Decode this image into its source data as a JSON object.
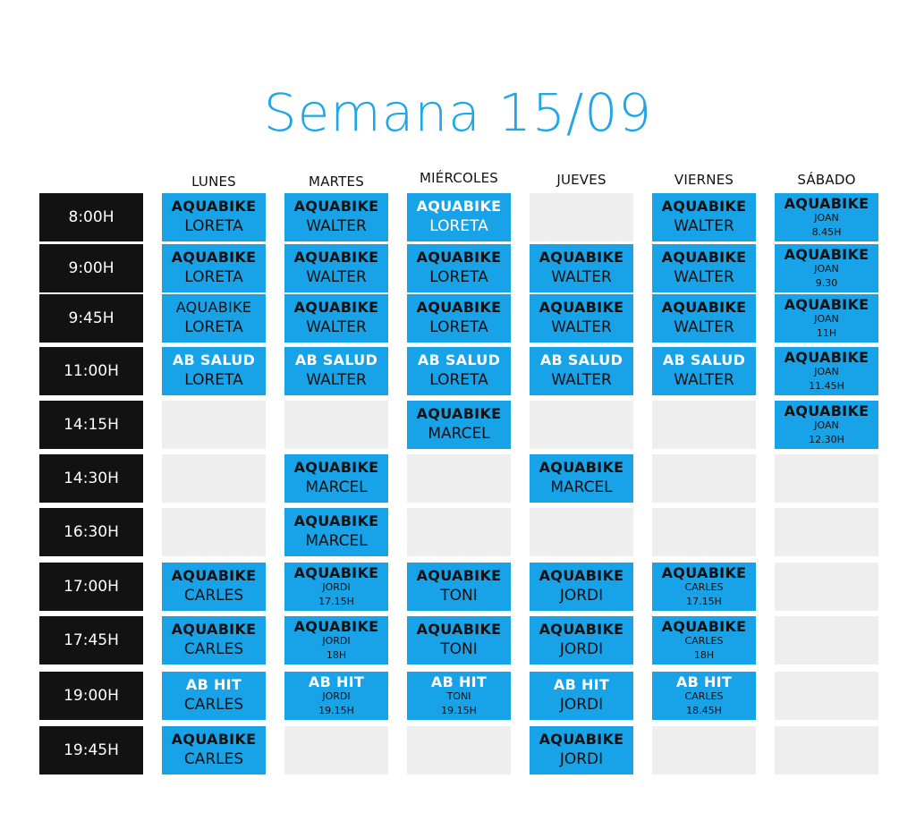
{
  "title": "Semana 15/09",
  "days": [
    "LUNES",
    "MARTES",
    "MIÉRCOLES",
    "JUEVES",
    "VIERNES",
    "SÁBADO"
  ],
  "times": [
    "8:00H",
    "9:00H",
    "9:45H",
    "11:00H",
    "14:15H",
    "14:30H",
    "16:30H",
    "17:00H",
    "17:45H",
    "19:00H",
    "19:45H"
  ],
  "grid": [
    [
      {
        "cls": "AQUABIKE",
        "inst": "LORETA"
      },
      {
        "cls": "AQUABIKE",
        "inst": "WALTER"
      },
      {
        "cls": "AQUABIKE",
        "inst": "LORETA",
        "white": true
      },
      null,
      {
        "cls": "AQUABIKE",
        "inst": "WALTER"
      },
      {
        "cls": "AQUABIKE",
        "sub": "JOAN",
        "time": "8.45H"
      }
    ],
    [
      {
        "cls": "AQUABIKE",
        "inst": "LORETA"
      },
      {
        "cls": "AQUABIKE",
        "inst": "WALTER"
      },
      {
        "cls": "AQUABIKE",
        "inst": "LORETA"
      },
      {
        "cls": "AQUABIKE",
        "inst": "WALTER"
      },
      {
        "cls": "AQUABIKE",
        "inst": "WALTER"
      },
      {
        "cls": "AQUABIKE",
        "sub": "JOAN",
        "time": "9.30"
      }
    ],
    [
      {
        "cls": "AQUABIKE",
        "inst": "LORETA",
        "light": true
      },
      {
        "cls": "AQUABIKE",
        "inst": "WALTER"
      },
      {
        "cls": "AQUABIKE",
        "inst": "LORETA"
      },
      {
        "cls": "AQUABIKE",
        "inst": "WALTER"
      },
      {
        "cls": "AQUABIKE",
        "inst": "WALTER"
      },
      {
        "cls": "AQUABIKE",
        "sub": "JOAN",
        "time": "11H"
      }
    ],
    [
      {
        "cls": "AB SALUD",
        "inst": "LORETA",
        "white": true
      },
      {
        "cls": "AB SALUD",
        "inst": "WALTER",
        "white": true
      },
      {
        "cls": "AB SALUD",
        "inst": "LORETA",
        "white": true
      },
      {
        "cls": "AB SALUD",
        "inst": "WALTER",
        "white": true
      },
      {
        "cls": "AB SALUD",
        "inst": "WALTER",
        "white": true
      },
      {
        "cls": "AQUABIKE",
        "sub": "JOAN",
        "time": "11.45H"
      }
    ],
    [
      null,
      null,
      {
        "cls": "AQUABIKE",
        "inst": "MARCEL"
      },
      null,
      null,
      {
        "cls": "AQUABIKE",
        "sub": "JOAN",
        "time": "12.30H"
      }
    ],
    [
      null,
      {
        "cls": "AQUABIKE",
        "inst": "MARCEL"
      },
      null,
      {
        "cls": "AQUABIKE",
        "inst": "MARCEL"
      },
      null,
      null
    ],
    [
      null,
      {
        "cls": "AQUABIKE",
        "inst": "MARCEL"
      },
      null,
      null,
      null,
      null
    ],
    [
      {
        "cls": "AQUABIKE",
        "inst": "CARLES"
      },
      {
        "cls": "AQUABIKE",
        "sub": "JORDI",
        "time": "17.15H"
      },
      {
        "cls": "AQUABIKE",
        "inst": "TONI"
      },
      {
        "cls": "AQUABIKE",
        "inst": "JORDI"
      },
      {
        "cls": "AQUABIKE",
        "sub": "CARLES",
        "time": "17.15H"
      },
      null
    ],
    [
      {
        "cls": "AQUABIKE",
        "inst": "CARLES"
      },
      {
        "cls": "AQUABIKE",
        "sub": "JORDI",
        "time": "18H"
      },
      {
        "cls": "AQUABIKE",
        "inst": "TONI"
      },
      {
        "cls": "AQUABIKE",
        "inst": "JORDI"
      },
      {
        "cls": "AQUABIKE",
        "sub": "CARLES",
        "time": "18H"
      },
      null
    ],
    [
      {
        "cls": "AB HIT",
        "inst": "CARLES",
        "white": true
      },
      {
        "cls": "AB HIT",
        "sub": "JORDI",
        "time": "19.15H",
        "white": true
      },
      {
        "cls": "AB HIT",
        "sub": "TONI",
        "time": "19.15H",
        "white": true
      },
      {
        "cls": "AB HIT",
        "inst": "JORDI",
        "white": true
      },
      {
        "cls": "AB HIT",
        "sub": "CARLES",
        "time": "18.45H",
        "white": true
      },
      null
    ],
    [
      {
        "cls": "AQUABIKE",
        "inst": "CARLES"
      },
      null,
      null,
      {
        "cls": "AQUABIKE",
        "inst": "JORDI"
      },
      null,
      null
    ]
  ],
  "colors": {
    "accent": "#18a2e8",
    "title": "#1ea6e6",
    "time_bg": "#121212",
    "empty": "#eeeeee"
  }
}
